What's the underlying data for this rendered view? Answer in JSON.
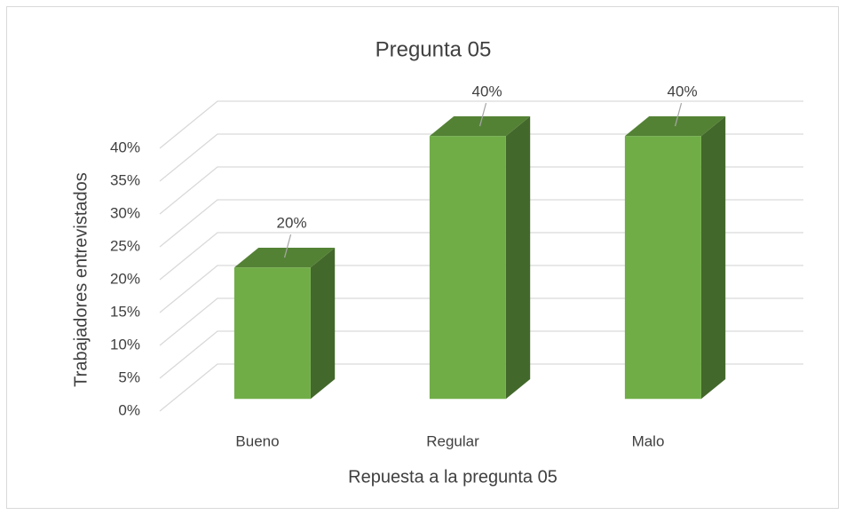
{
  "chart_data": {
    "type": "bar3d",
    "title": "Pregunta 05",
    "x_label": "Repuesta a la pregunta 05",
    "y_label": "Trabajadores entrevistados",
    "categories": [
      "Bueno",
      "Regular",
      "Malo"
    ],
    "values": [
      20,
      40,
      40
    ],
    "value_labels": [
      "20%",
      "40%",
      "40%"
    ],
    "color": "#70ad47",
    "ylim": [
      0,
      40
    ],
    "yticks": [
      {
        "value": 0,
        "label": "0%"
      },
      {
        "value": 5,
        "label": "5%"
      },
      {
        "value": 10,
        "label": "10%"
      },
      {
        "value": 15,
        "label": "15%"
      },
      {
        "value": 20,
        "label": "20%"
      },
      {
        "value": 25,
        "label": "25%"
      },
      {
        "value": 30,
        "label": "30%"
      },
      {
        "value": 35,
        "label": "35%"
      },
      {
        "value": 40,
        "label": "40%"
      }
    ],
    "grid": true
  }
}
